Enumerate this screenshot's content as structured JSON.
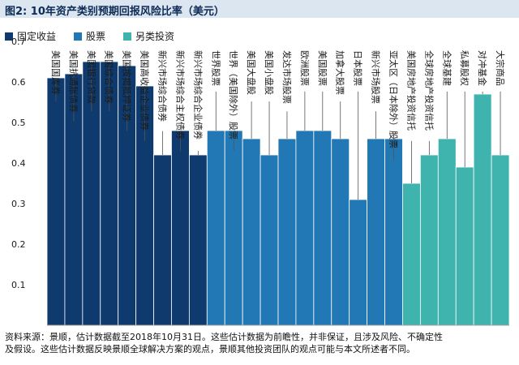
{
  "header": {
    "title": "图2:  10年资产类别预期回报风险比率（美元）"
  },
  "legend": [
    {
      "label": "固定收益",
      "color": "#0e3a6e"
    },
    {
      "label": "股票",
      "color": "#2278b5"
    },
    {
      "label": "另类投资",
      "color": "#3fb3ad"
    }
  ],
  "chart_data": {
    "type": "bar",
    "title": "10年资产类别预期回报风险比率（美元）",
    "ylim": [
      0,
      0.7
    ],
    "yticks": [
      "0.1",
      "0.2",
      "0.3",
      "0.4",
      "0.5",
      "0.6",
      "0.7"
    ],
    "grid": false,
    "legend_position": "top-left",
    "categories": [
      "美国国库券",
      "美国抗通胀债券",
      "美国银行贷款",
      "美国综合债券",
      "美国按揭抵押证券",
      "美国高收益企业债券",
      "新兴市场综合债券",
      "新兴市场综合主权债券",
      "新兴市场综合企业债券",
      "世界股票",
      "世界（美国除外）股票",
      "美国大盘股",
      "美国小盘股",
      "发达市场股票",
      "欧洲股票",
      "美国股票",
      "加拿大股票",
      "日本股票",
      "新兴市场股票",
      "亚太区（日本除外）股票",
      "美国房地产投资信托",
      "全球房地产投资信托",
      "全球基建",
      "私募股权",
      "对冲基金",
      "大宗商品"
    ],
    "series": [
      {
        "name": "固定收益",
        "color": "#0e3a6e",
        "values": [
          0.61,
          0.62,
          0.65,
          0.65,
          0.64,
          0.59,
          0.42,
          0.48,
          0.42,
          null,
          null,
          null,
          null,
          null,
          null,
          null,
          null,
          null,
          null,
          null,
          null,
          null,
          null,
          null,
          null,
          null
        ]
      },
      {
        "name": "股票",
        "color": "#2278b5",
        "values": [
          null,
          null,
          null,
          null,
          null,
          null,
          null,
          null,
          null,
          0.48,
          0.48,
          0.46,
          0.42,
          0.46,
          0.48,
          0.48,
          0.46,
          0.31,
          0.46,
          0.46,
          null,
          null,
          null,
          null,
          null,
          null
        ]
      },
      {
        "name": "另类投资",
        "color": "#3fb3ad",
        "values": [
          null,
          null,
          null,
          null,
          null,
          null,
          null,
          null,
          null,
          null,
          null,
          null,
          null,
          null,
          null,
          null,
          null,
          null,
          null,
          null,
          0.35,
          0.42,
          0.46,
          0.39,
          0.57,
          0.42
        ]
      }
    ]
  },
  "footnote": {
    "line1": "资料来源：景顺，估计数据截至2018年10月31日。这些估计数据为前瞻性，并非保证，且涉及风险、不确定性",
    "line2": "及假设。这些估计数据反映景顺全球解决方案的观点，景顺其他投资团队的观点可能与本文所述者不同。"
  }
}
